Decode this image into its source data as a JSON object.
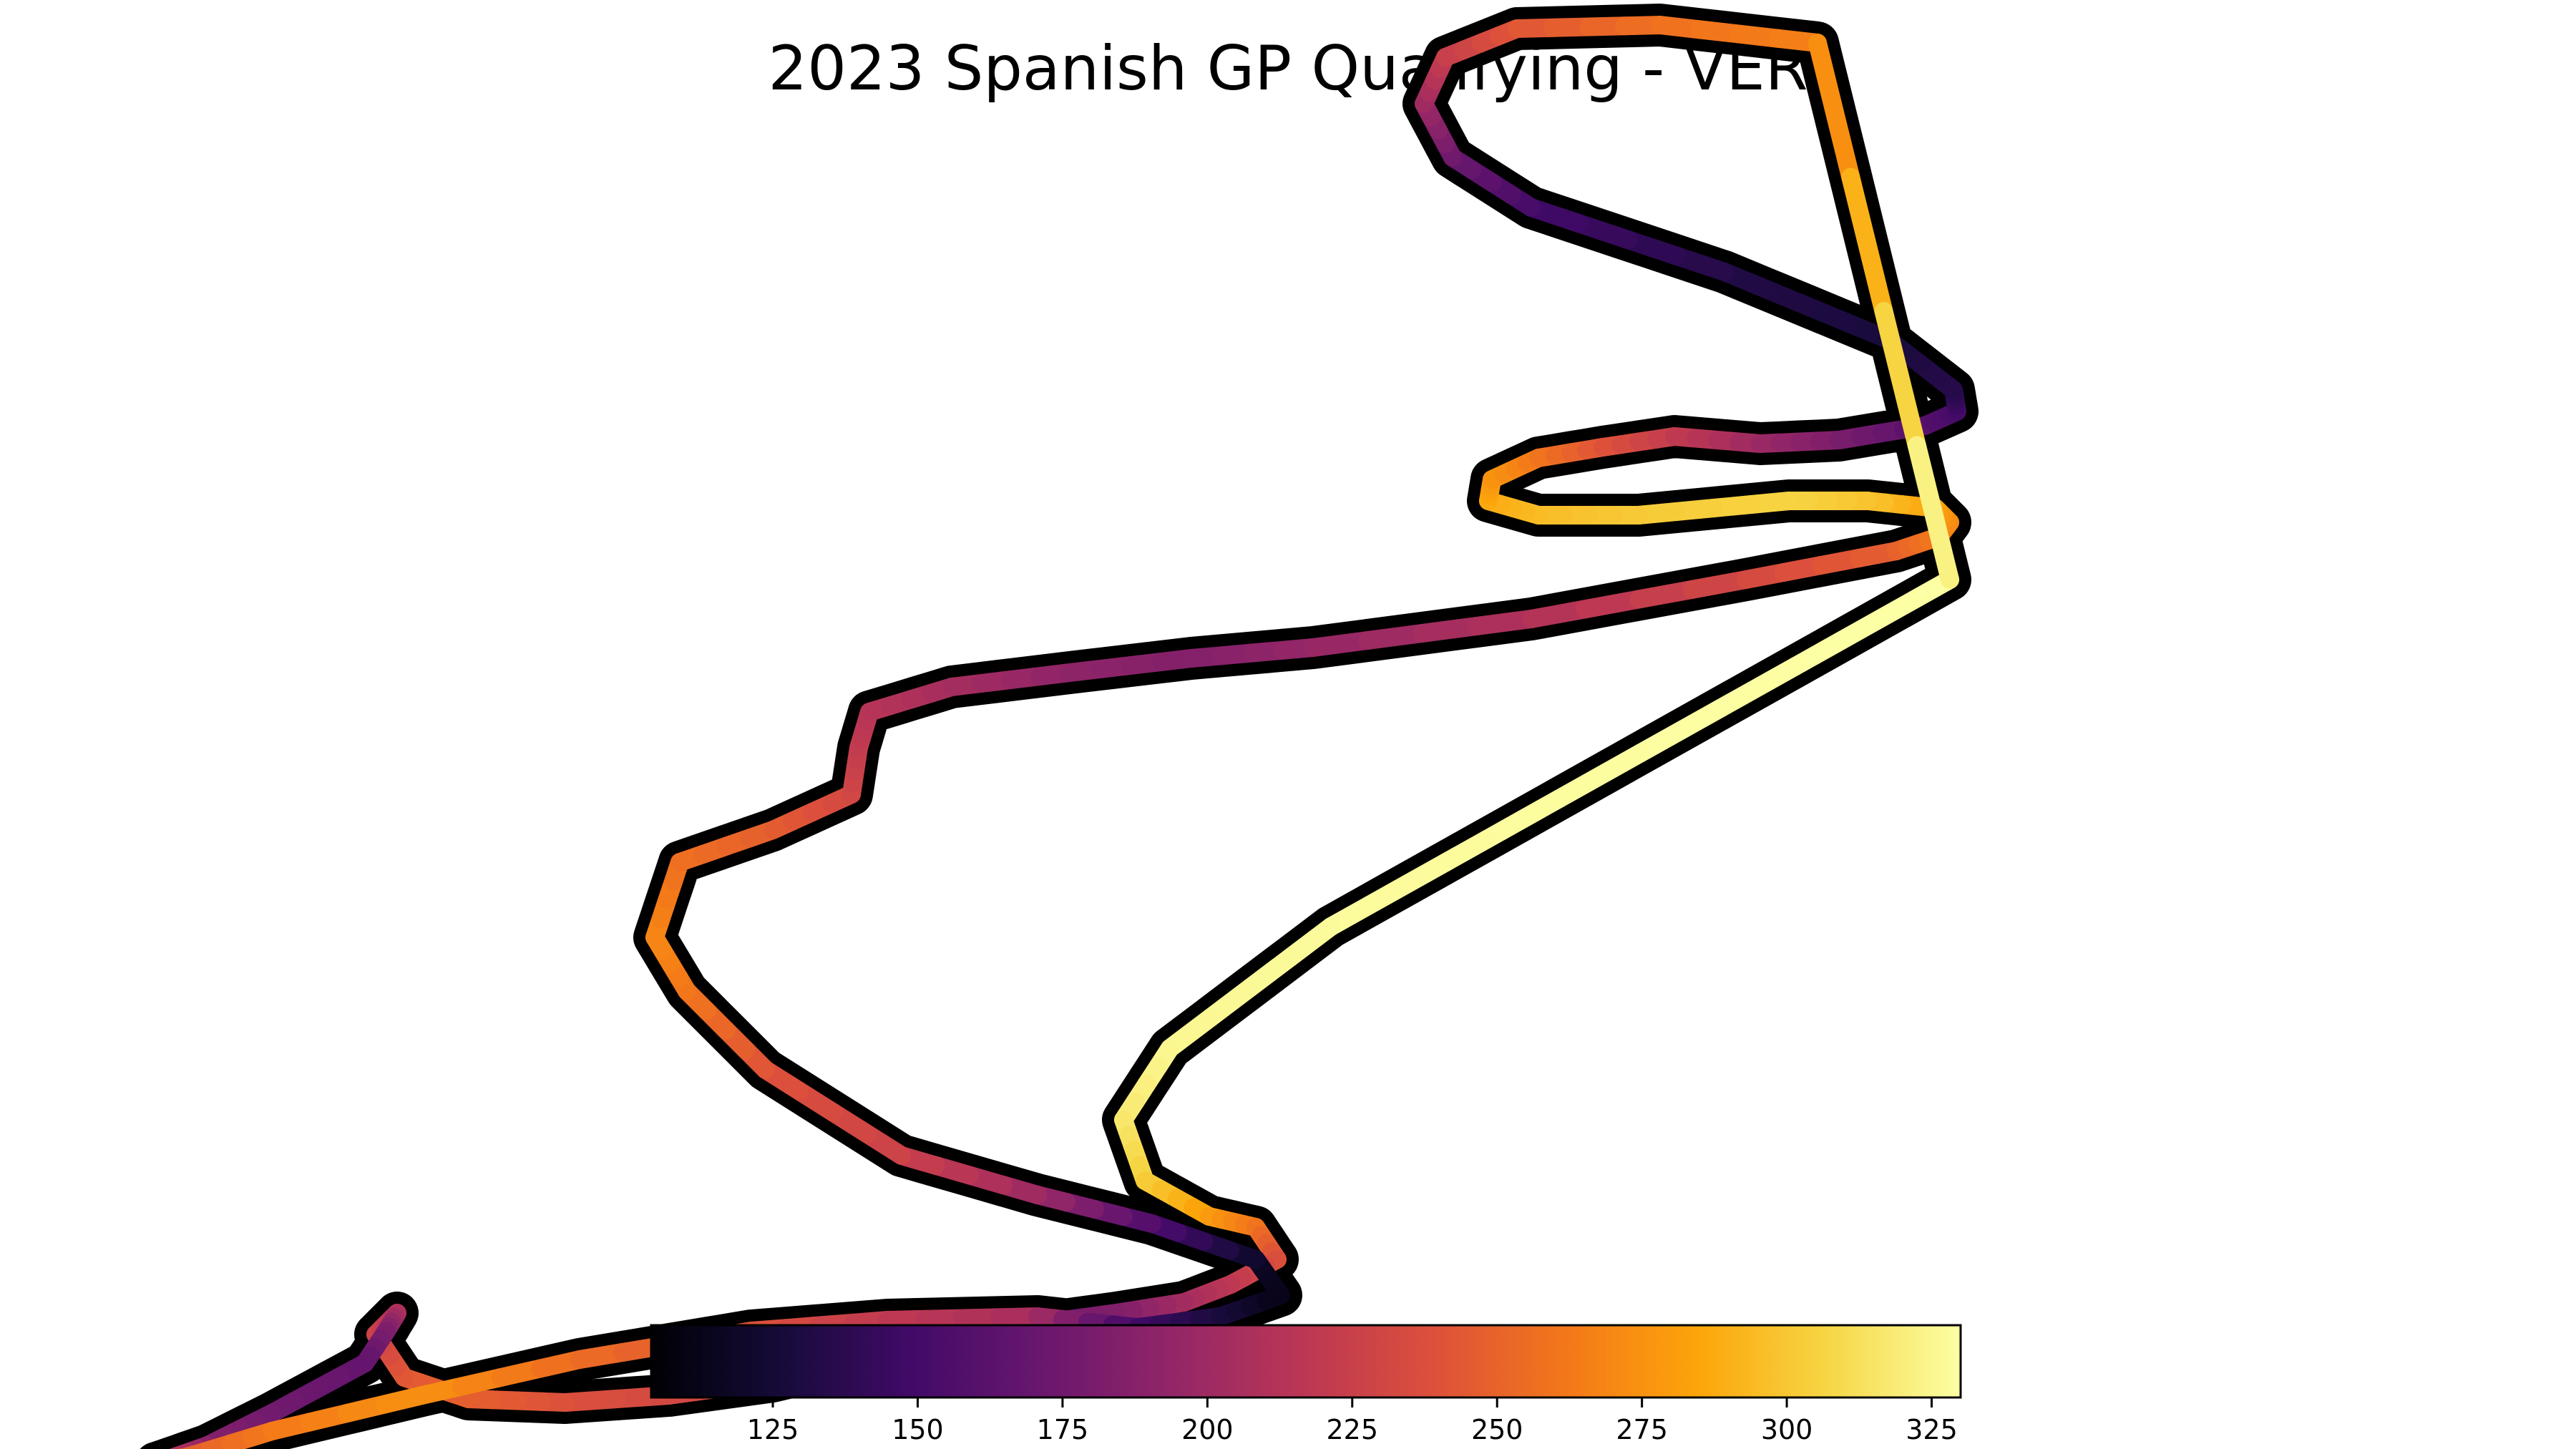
{
  "chart_data": {
    "type": "heatmap",
    "title": "2023 Spanish GP Qualifying - VER",
    "colormap": "inferno",
    "color_range": [
      104,
      330
    ],
    "colorbar": {
      "placement": "bottom",
      "ticks": [
        125,
        150,
        175,
        200,
        225,
        250,
        275,
        300,
        325
      ],
      "tick_labels": [
        "125",
        "150",
        "175",
        "200",
        "225",
        "250",
        "275",
        "300",
        "325"
      ]
    },
    "track": {
      "x": [
        2725,
        1860,
        1635,
        1570,
        1600,
        1690,
        1755,
        1785,
        1720,
        1655,
        1560,
        1450,
        1325,
        1225,
        1080,
        935,
        790,
        655,
        565,
        525,
        555,
        540,
        510,
        380,
        290,
        233,
        218,
        265,
        380,
        590,
        810,
        1050,
        1240,
        1450,
        1590,
        1705,
        1790,
        1755,
        1610,
        1450,
        1260,
        1070,
        960,
        915,
        950,
        1080,
        1190,
        1200,
        1215,
        1330,
        1495,
        1665,
        1835,
        2140,
        2440,
        2650,
        2710,
        2725,
        2705,
        2610,
        2500,
        2290,
        2150,
        2080,
        2085,
        2150,
        2240,
        2340,
        2460,
        2570,
        2690,
        2735,
        2730,
        2640,
        2410,
        2140,
        2030,
        1990,
        2020,
        2120,
        2320,
        2540,
        2725
      ],
      "y": [
        810,
        1295,
        1465,
        1565,
        1650,
        1700,
        1715,
        1760,
        1795,
        1820,
        1835,
        1850,
        1880,
        1895,
        1930,
        1950,
        1960,
        1955,
        1925,
        1865,
        1835,
        1860,
        1905,
        1975,
        2020,
        2040,
        2045,
        2035,
        2000,
        1950,
        1900,
        1860,
        1845,
        1840,
        1855,
        1840,
        1810,
        1760,
        1710,
        1670,
        1615,
        1495,
        1385,
        1310,
        1205,
        1160,
        1110,
        1045,
        995,
        960,
        940,
        920,
        905,
        865,
        810,
        770,
        750,
        730,
        710,
        700,
        700,
        720,
        720,
        700,
        670,
        640,
        625,
        610,
        620,
        615,
        595,
        575,
        545,
        475,
        380,
        290,
        220,
        145,
        80,
        40,
        35,
        60,
        810
      ],
      "speed": [
        330,
        328,
        326,
        318,
        305,
        282,
        262,
        240,
        220,
        205,
        185,
        176,
        196,
        208,
        226,
        232,
        238,
        248,
        245,
        230,
        212,
        185,
        168,
        175,
        186,
        216,
        226,
        248,
        262,
        275,
        256,
        240,
        220,
        205,
        150,
        130,
        112,
        118,
        155,
        198,
        226,
        240,
        260,
        270,
        258,
        248,
        232,
        222,
        215,
        205,
        192,
        185,
        195,
        210,
        232,
        248,
        262,
        270,
        282,
        298,
        306,
        302,
        296,
        288,
        278,
        262,
        242,
        222,
        200,
        182,
        162,
        152,
        136,
        128,
        133,
        150,
        172,
        198,
        222,
        242,
        258,
        266,
        330
      ]
    }
  }
}
